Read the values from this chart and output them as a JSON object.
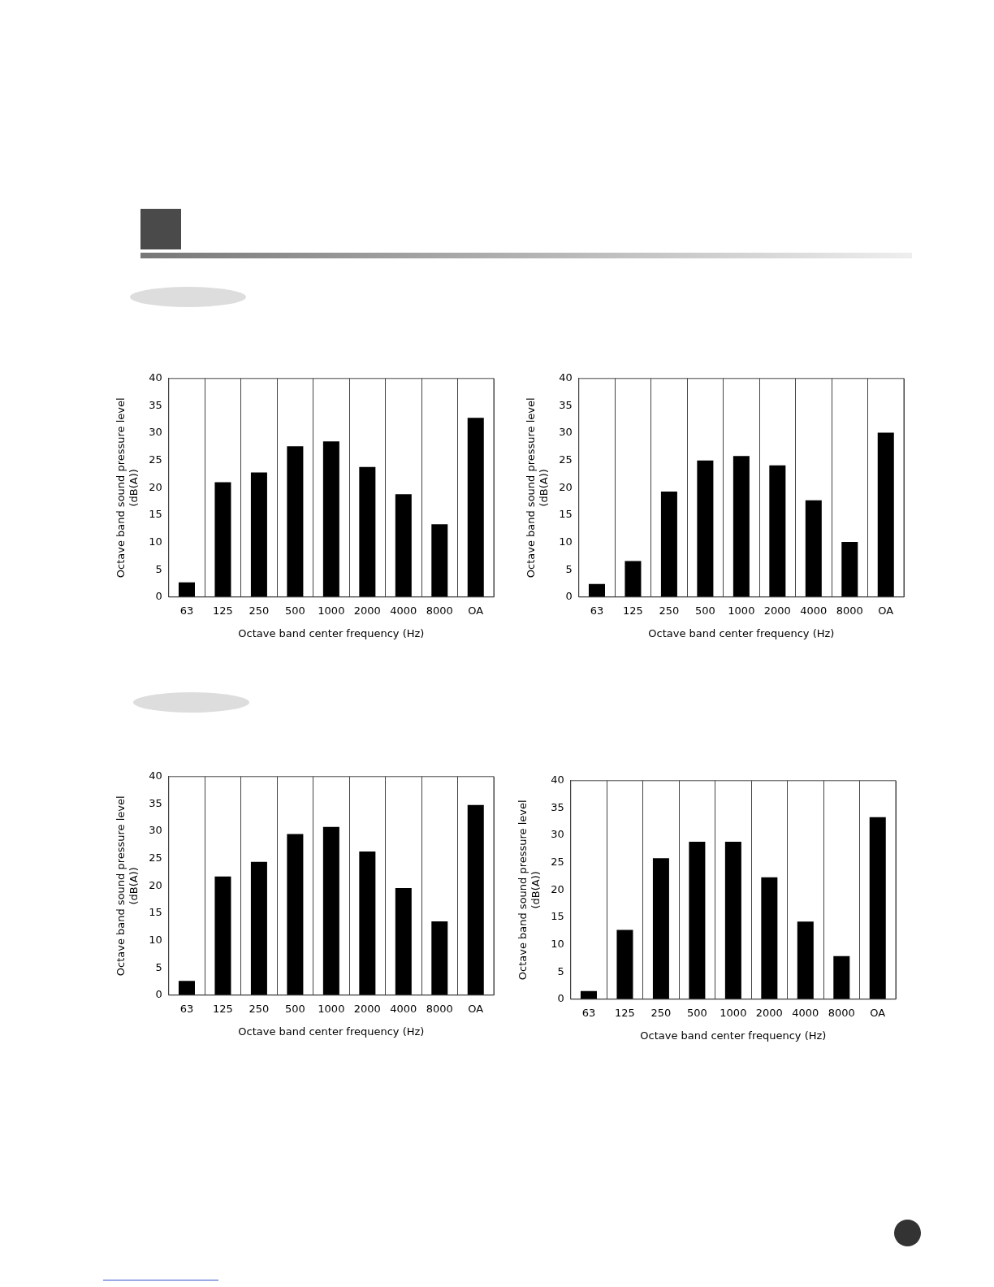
{
  "chart_data": [
    {
      "type": "bar",
      "categories": [
        "63",
        "125",
        "250",
        "500",
        "1000",
        "2000",
        "4000",
        "8000",
        "OA"
      ],
      "values": [
        2.7,
        21,
        22.8,
        27.6,
        28.5,
        23.8,
        18.8,
        13.3,
        32.8
      ],
      "color": "#000000",
      "xlabel": "Octave band center frequency (Hz)",
      "ylabel": "Octave band sound pressure level\n(dB(A))",
      "ylim": [
        0,
        40
      ],
      "yticks": [
        0,
        5,
        10,
        15,
        20,
        25,
        30,
        35,
        40
      ],
      "grid": "x",
      "legend": false
    },
    {
      "type": "bar",
      "categories": [
        "63",
        "125",
        "250",
        "500",
        "1000",
        "2000",
        "4000",
        "8000",
        "OA"
      ],
      "values": [
        2.4,
        6.6,
        19.3,
        25,
        25.8,
        24.1,
        17.7,
        10.1,
        30.1
      ],
      "color": "#000000",
      "xlabel": "Octave band center frequency (Hz)",
      "ylabel": "Octave band sound pressure level\n(dB(A))",
      "ylim": [
        0,
        40
      ],
      "yticks": [
        0,
        5,
        10,
        15,
        20,
        25,
        30,
        35,
        40
      ],
      "grid": "x",
      "legend": false
    },
    {
      "type": "bar",
      "categories": [
        "63",
        "125",
        "250",
        "500",
        "1000",
        "2000",
        "4000",
        "8000",
        "OA"
      ],
      "values": [
        2.6,
        21.7,
        24.4,
        29.5,
        30.8,
        26.3,
        19.6,
        13.5,
        34.8
      ],
      "color": "#000000",
      "xlabel": "Octave band center frequency (Hz)",
      "ylabel": "Octave band sound pressure level\n(dB(A))",
      "ylim": [
        0,
        40
      ],
      "yticks": [
        0,
        5,
        10,
        15,
        20,
        25,
        30,
        35,
        40
      ],
      "grid": "x",
      "legend": false
    },
    {
      "type": "bar",
      "categories": [
        "63",
        "125",
        "250",
        "500",
        "1000",
        "2000",
        "4000",
        "8000",
        "OA"
      ],
      "values": [
        1.5,
        12.7,
        25.8,
        28.8,
        28.8,
        22.3,
        14.2,
        7.9,
        33.3
      ],
      "color": "#000000",
      "xlabel": "Octave band center frequency (Hz)",
      "ylabel": "Octave band sound pressure level\n(dB(A))",
      "ylim": [
        0,
        40
      ],
      "yticks": [
        0,
        5,
        10,
        15,
        20,
        25,
        30,
        35,
        40
      ],
      "grid": "x",
      "legend": false
    }
  ]
}
